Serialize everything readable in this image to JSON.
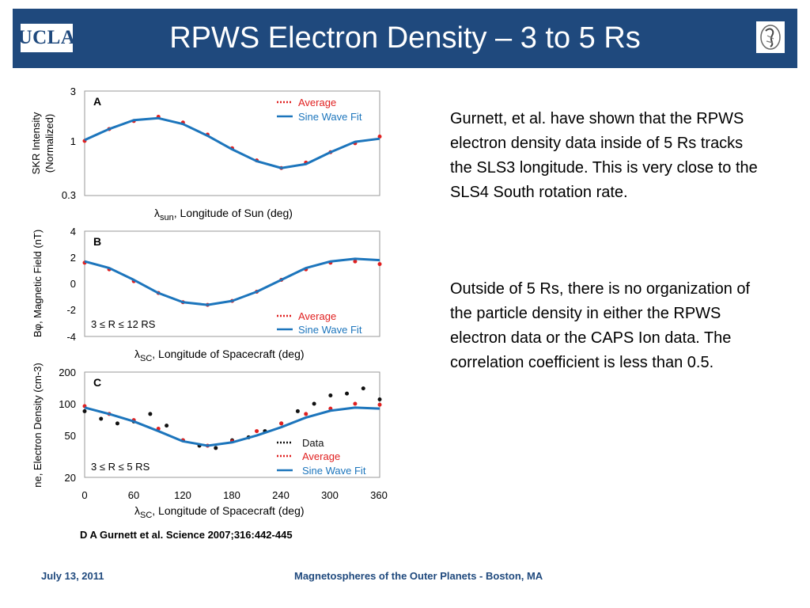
{
  "slide": {
    "title": "RPWS Electron Density – 3 to 5 Rs",
    "logo_left_text": "UCLA",
    "logo_right": "seal-emblem-icon",
    "paragraph1": "Gurnett, et al. have shown that the RPWS electron density data inside of 5 Rs tracks the SLS3 longitude. This is very close to the SLS4 South rotation rate.",
    "paragraph2": "Outside of 5 Rs, there is no organization of the particle density in either the RPWS electron data or the CAPS Ion data.  The correlation coefficient is less than 0.5.",
    "citation": "D A Gurnett et al. Science 2007;316:442-445",
    "footer_date": "July 13, 2011",
    "footer_center": "Magnetospheres of the Outer Planets - Boston, MA"
  },
  "colors": {
    "header": "#1f497d",
    "average": "#e02020",
    "fit": "#1c75bc",
    "data": "#111111"
  },
  "chart_data": [
    {
      "type": "line",
      "panel": "A",
      "xlabel": "λsun, Longitude of Sun (deg)",
      "xlabel_symbol": "λ",
      "xlabel_sub": "sun",
      "xlabel_text": ", Longitude of Sun (deg)",
      "ylabel_line1": "SKR Intensity",
      "ylabel_line2": "(Normalized)",
      "yscale": "log",
      "ylim": [
        0.3,
        3
      ],
      "yticks": [
        "3",
        "1",
        "0.3"
      ],
      "xlim": [
        0,
        360
      ],
      "legend": [
        "Average",
        "Sine Wave Fit"
      ],
      "series": [
        {
          "name": "Average",
          "style": "dotted",
          "x": [
            0,
            30,
            60,
            90,
            120,
            150,
            180,
            210,
            240,
            270,
            300,
            330,
            360
          ],
          "y": [
            1.0,
            1.3,
            1.55,
            1.7,
            1.5,
            1.15,
            0.85,
            0.65,
            0.55,
            0.62,
            0.78,
            0.95,
            1.1
          ]
        },
        {
          "name": "Sine Wave Fit",
          "style": "solid",
          "x": [
            0,
            30,
            60,
            90,
            120,
            150,
            180,
            210,
            240,
            270,
            300,
            330,
            360
          ],
          "y": [
            1.02,
            1.3,
            1.58,
            1.65,
            1.45,
            1.12,
            0.83,
            0.64,
            0.55,
            0.6,
            0.78,
            0.98,
            1.05
          ]
        }
      ]
    },
    {
      "type": "line",
      "panel": "B",
      "xlabel": "λSC, Longitude of Spacecraft (deg)",
      "xlabel_symbol": "λ",
      "xlabel_sub": "SC",
      "xlabel_text": ", Longitude of Spacecraft (deg)",
      "ylabel": "Bφ, Magnetic Field (nT)",
      "ylim": [
        -4,
        4
      ],
      "yticks": [
        "4",
        "2",
        "0",
        "-2",
        "-4"
      ],
      "xlim": [
        0,
        360
      ],
      "range_label": "3 ≤ R ≤ 12 RS",
      "legend": [
        "Average",
        "Sine Wave Fit"
      ],
      "series": [
        {
          "name": "Average",
          "style": "dotted",
          "x": [
            0,
            30,
            60,
            90,
            120,
            150,
            180,
            210,
            240,
            270,
            300,
            330,
            360
          ],
          "y": [
            1.6,
            1.1,
            0.2,
            -0.7,
            -1.4,
            -1.6,
            -1.3,
            -0.6,
            0.3,
            1.1,
            1.6,
            1.7,
            1.5
          ]
        },
        {
          "name": "Sine Wave Fit",
          "style": "solid",
          "x": [
            0,
            30,
            60,
            90,
            120,
            150,
            180,
            210,
            240,
            270,
            300,
            330,
            360
          ],
          "y": [
            1.7,
            1.2,
            0.3,
            -0.7,
            -1.4,
            -1.6,
            -1.3,
            -0.6,
            0.3,
            1.2,
            1.7,
            1.9,
            1.8
          ]
        }
      ]
    },
    {
      "type": "line",
      "panel": "C",
      "xlabel": "λSC, Longitude of Spacecraft (deg)",
      "xlabel_symbol": "λ",
      "xlabel_sub": "SC",
      "xlabel_text": ", Longitude of Spacecraft (deg)",
      "ylabel": "ne, Electron Density (cm-3)",
      "yscale": "log",
      "ylim": [
        20,
        200
      ],
      "yticks": [
        "200",
        "100",
        "50",
        "20"
      ],
      "xlim": [
        0,
        360
      ],
      "xticks": [
        "0",
        "60",
        "120",
        "180",
        "240",
        "300",
        "360"
      ],
      "range_label": "3 ≤ R ≤ 5 RS",
      "legend": [
        "Data",
        "Average",
        "Sine Wave Fit"
      ],
      "series": [
        {
          "name": "Data",
          "style": "dotted",
          "x": [
            0,
            20,
            40,
            60,
            80,
            100,
            120,
            140,
            160,
            180,
            200,
            220,
            240,
            260,
            280,
            300,
            320,
            340,
            360
          ],
          "y": [
            85,
            72,
            65,
            68,
            80,
            62,
            45,
            40,
            38,
            45,
            48,
            55,
            65,
            85,
            100,
            120,
            125,
            140,
            110
          ]
        },
        {
          "name": "Average",
          "style": "dotted",
          "x": [
            0,
            30,
            60,
            90,
            120,
            150,
            180,
            210,
            240,
            270,
            300,
            330,
            360
          ],
          "y": [
            95,
            80,
            70,
            58,
            45,
            40,
            44,
            55,
            65,
            80,
            90,
            100,
            98
          ]
        },
        {
          "name": "Sine Wave Fit",
          "style": "solid",
          "x": [
            0,
            30,
            60,
            90,
            120,
            150,
            180,
            210,
            240,
            270,
            300,
            330,
            360
          ],
          "y": [
            92,
            80,
            68,
            55,
            44,
            40,
            43,
            50,
            60,
            74,
            86,
            92,
            90
          ]
        }
      ]
    }
  ]
}
